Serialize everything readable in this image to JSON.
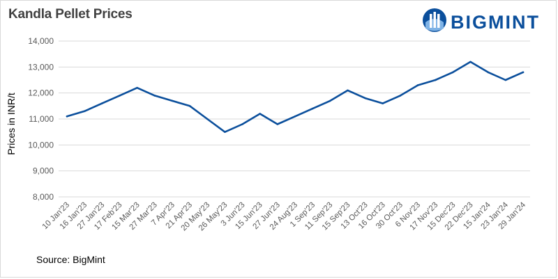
{
  "chart_data": {
    "type": "line",
    "title": "Kandla Pellet Prices",
    "ylabel": "Prices in INR/t",
    "xlabel": "",
    "source": "Source: BigMint",
    "ylim": [
      8000,
      14000
    ],
    "yticks": [
      8000,
      9000,
      10000,
      11000,
      12000,
      13000,
      14000
    ],
    "ytick_labels": [
      "8,000",
      "9,000",
      "10,000",
      "11,000",
      "12,000",
      "13,000",
      "14,000"
    ],
    "grid": true,
    "legend": "none",
    "categories": [
      "10 Jan'23",
      "16 Jan'23",
      "27 Jan'23",
      "17 Feb'23",
      "15 Mar'23",
      "27 Mar'23",
      "7 Apr'23",
      "21 Apr'23",
      "20 May'23",
      "26 May'23",
      "3 Jun'23",
      "15 Jun'23",
      "27 Jun'23",
      "24 Aug'23",
      "1 Sep'23",
      "11 Sep'23",
      "15 Sep'23",
      "13 Oct'23",
      "16 Oct'23",
      "30 Oct'23",
      "6 Nov'23",
      "17 Nov'23",
      "15 Dec'23",
      "22 Dec'23",
      "15 Jan'24",
      "23 Jan'24",
      "29 Jan'24"
    ],
    "series": [
      {
        "color": "#0b4f9c",
        "values": [
          11100,
          11300,
          11600,
          11900,
          12200,
          11900,
          11700,
          11500,
          11000,
          10500,
          10800,
          11200,
          10800,
          11100,
          11400,
          11700,
          12100,
          11800,
          11600,
          11900,
          12300,
          12500,
          12800,
          13200,
          12800,
          12500,
          12800
        ]
      }
    ]
  },
  "logo": {
    "text": "BIGMINT",
    "color": "#0b4f9c"
  }
}
